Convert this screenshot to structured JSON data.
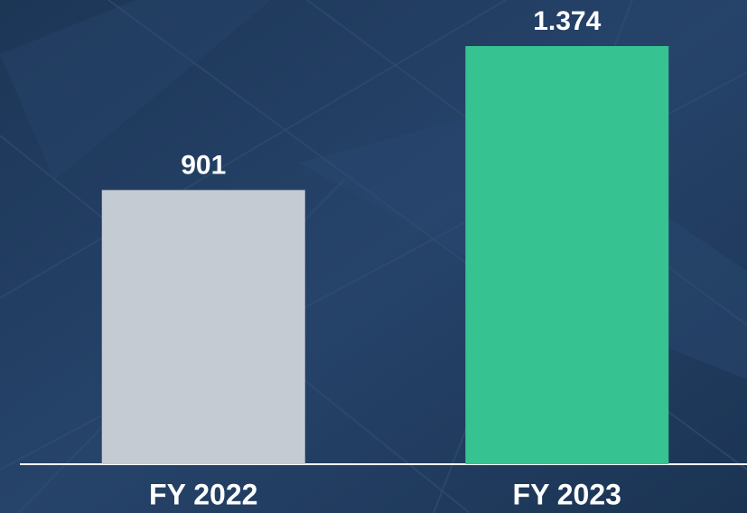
{
  "chart_data": {
    "type": "bar",
    "categories": [
      "FY 2022",
      "FY 2023"
    ],
    "values": [
      901,
      1374
    ],
    "value_labels": [
      "901",
      "1.374"
    ],
    "colors": [
      "#c5cbd3",
      "#36c291"
    ]
  }
}
